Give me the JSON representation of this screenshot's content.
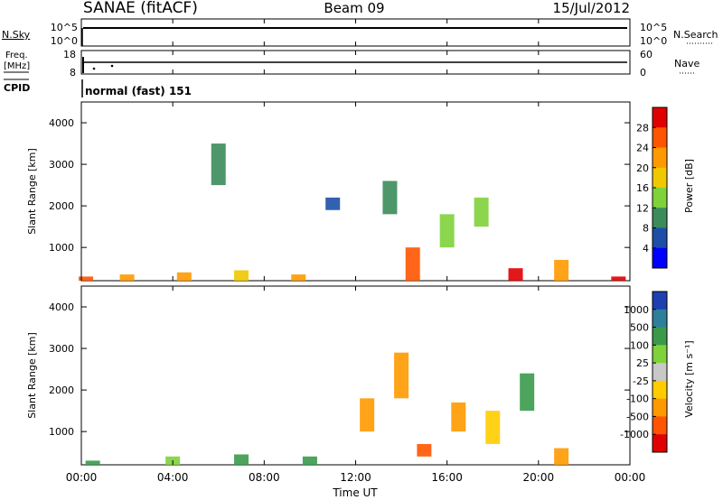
{
  "header": {
    "station": "SANAE (fitACF)",
    "beam": "Beam 09",
    "date": "15/Jul/2012"
  },
  "panels": {
    "nsky_label": "N.Sky",
    "nsky_ticks": [
      "10^5",
      "10^0"
    ],
    "nsearch_label": "N.Search",
    "nsearch_ticks": [
      "10^5",
      "10^0"
    ],
    "freq_label_1": "Freq.",
    "freq_label_2": "[MHz]",
    "freq_ticks": [
      "18",
      "8"
    ],
    "nave_label": "Nave",
    "nave_ticks": [
      "60",
      "0"
    ],
    "cpid_label": "CPID",
    "cpid_value": "normal (fast) 151"
  },
  "chart_data": [
    {
      "type": "heatmap",
      "name": "power",
      "ylabel": "Slant Range [km]",
      "yticks": [
        "1000",
        "2000",
        "3000",
        "4000"
      ],
      "ylim": [
        200,
        4500
      ],
      "colorbar_label": "Power [dB]",
      "colorbar_ticks": [
        "4",
        "8",
        "12",
        "16",
        "20",
        "24",
        "28"
      ],
      "colorbar_range": [
        0,
        32
      ],
      "colors": [
        "#0000ff",
        "#1d4fa8",
        "#3b8c5a",
        "#7fd23a",
        "#f0c800",
        "#ff9900",
        "#ff5500",
        "#e00000"
      ],
      "data": [
        {
          "t": 0.2,
          "r0": 200,
          "r1": 300,
          "v": 26
        },
        {
          "t": 2.0,
          "r0": 200,
          "r1": 350,
          "v": 20
        },
        {
          "t": 4.5,
          "r0": 200,
          "r1": 400,
          "v": 22
        },
        {
          "t": 6.0,
          "r0": 2500,
          "r1": 3500,
          "v": 8
        },
        {
          "t": 7.0,
          "r0": 200,
          "r1": 450,
          "v": 18
        },
        {
          "t": 9.5,
          "r0": 200,
          "r1": 350,
          "v": 22
        },
        {
          "t": 11.0,
          "r0": 1900,
          "r1": 2200,
          "v": 6
        },
        {
          "t": 13.5,
          "r0": 1800,
          "r1": 2600,
          "v": 10
        },
        {
          "t": 14.5,
          "r0": 200,
          "r1": 1000,
          "v": 24
        },
        {
          "t": 16.0,
          "r0": 1000,
          "r1": 1800,
          "v": 12
        },
        {
          "t": 17.5,
          "r0": 1500,
          "r1": 2200,
          "v": 14
        },
        {
          "t": 19.0,
          "r0": 200,
          "r1": 500,
          "v": 28
        },
        {
          "t": 21.0,
          "r0": 200,
          "r1": 700,
          "v": 20
        },
        {
          "t": 23.5,
          "r0": 200,
          "r1": 300,
          "v": 28
        }
      ]
    },
    {
      "type": "heatmap",
      "name": "velocity",
      "ylabel": "Slant Range [km]",
      "yticks": [
        "1000",
        "2000",
        "3000",
        "4000"
      ],
      "ylim": [
        200,
        4500
      ],
      "colorbar_label": "Velocity [m s⁻¹]",
      "colorbar_ticks": [
        "1000",
        "500",
        "100",
        "25",
        "-25",
        "-100",
        "-500",
        "-1000"
      ],
      "colors": [
        "#1d3fb0",
        "#2e7f9a",
        "#3a9a4a",
        "#7fd23a",
        "#c8c8c8",
        "#ffcc00",
        "#ff9900",
        "#ff5500",
        "#e00000"
      ],
      "data": [
        {
          "t": 0.5,
          "r0": 200,
          "r1": 300,
          "v": 100
        },
        {
          "t": 4.0,
          "r0": 200,
          "r1": 400,
          "v": 50
        },
        {
          "t": 7.0,
          "r0": 200,
          "r1": 450,
          "v": 100
        },
        {
          "t": 10.0,
          "r0": 200,
          "r1": 400,
          "v": 100
        },
        {
          "t": 12.5,
          "r0": 1000,
          "r1": 1800,
          "v": -300
        },
        {
          "t": 14.0,
          "r0": 1800,
          "r1": 2900,
          "v": -400
        },
        {
          "t": 15.0,
          "r0": 400,
          "r1": 700,
          "v": -600
        },
        {
          "t": 16.5,
          "r0": 1000,
          "r1": 1700,
          "v": -150
        },
        {
          "t": 18.0,
          "r0": 700,
          "r1": 1500,
          "v": -100
        },
        {
          "t": 19.5,
          "r0": 1500,
          "r1": 2400,
          "v": 100
        },
        {
          "t": 21.0,
          "r0": 200,
          "r1": 600,
          "v": -300
        }
      ]
    }
  ],
  "xaxis": {
    "ticks": [
      "00:00",
      "04:00",
      "08:00",
      "12:00",
      "16:00",
      "20:00",
      "00:00"
    ],
    "label": "Time UT",
    "range_hours": [
      0,
      24
    ]
  }
}
